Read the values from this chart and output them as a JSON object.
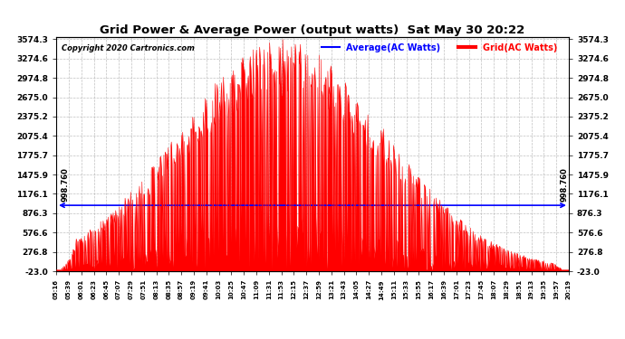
{
  "title": "Grid Power & Average Power (output watts)  Sat May 30 20:22",
  "copyright": "Copyright 2020 Cartronics.com",
  "legend_avg": "Average(AC Watts)",
  "legend_grid": "Grid(AC Watts)",
  "avg_value": 998.76,
  "avg_label": "998.760",
  "ymin": -23.0,
  "ymax": 3574.3,
  "yticks": [
    -23.0,
    276.8,
    576.6,
    876.3,
    1176.1,
    1475.9,
    1775.7,
    2075.4,
    2375.2,
    2675.0,
    2974.8,
    3274.6,
    3574.3
  ],
  "ytick_labels": [
    "-23.0",
    "276.8",
    "576.6",
    "876.3",
    "1176.1",
    "1475.9",
    "1775.7",
    "2075.4",
    "2375.2",
    "2675.0",
    "2974.8",
    "3274.6",
    "3574.3"
  ],
  "xtick_labels": [
    "05:16",
    "05:39",
    "06:01",
    "06:23",
    "06:45",
    "07:07",
    "07:29",
    "07:51",
    "08:13",
    "08:35",
    "08:57",
    "09:19",
    "09:41",
    "10:03",
    "10:25",
    "10:47",
    "11:09",
    "11:31",
    "11:53",
    "12:15",
    "12:37",
    "12:59",
    "13:21",
    "13:43",
    "14:05",
    "14:27",
    "14:49",
    "15:11",
    "15:33",
    "15:55",
    "16:17",
    "16:39",
    "17:01",
    "17:23",
    "17:45",
    "18:07",
    "18:29",
    "18:51",
    "19:13",
    "19:35",
    "19:57",
    "20:19"
  ],
  "bar_color": "#ff0000",
  "avg_line_color": "#0000ff",
  "background_color": "#ffffff",
  "grid_color": "#b0b0b0",
  "title_color": "#000000",
  "copyright_color": "#000000",
  "legend_avg_color": "#0000ff",
  "legend_grid_color": "#ff0000"
}
